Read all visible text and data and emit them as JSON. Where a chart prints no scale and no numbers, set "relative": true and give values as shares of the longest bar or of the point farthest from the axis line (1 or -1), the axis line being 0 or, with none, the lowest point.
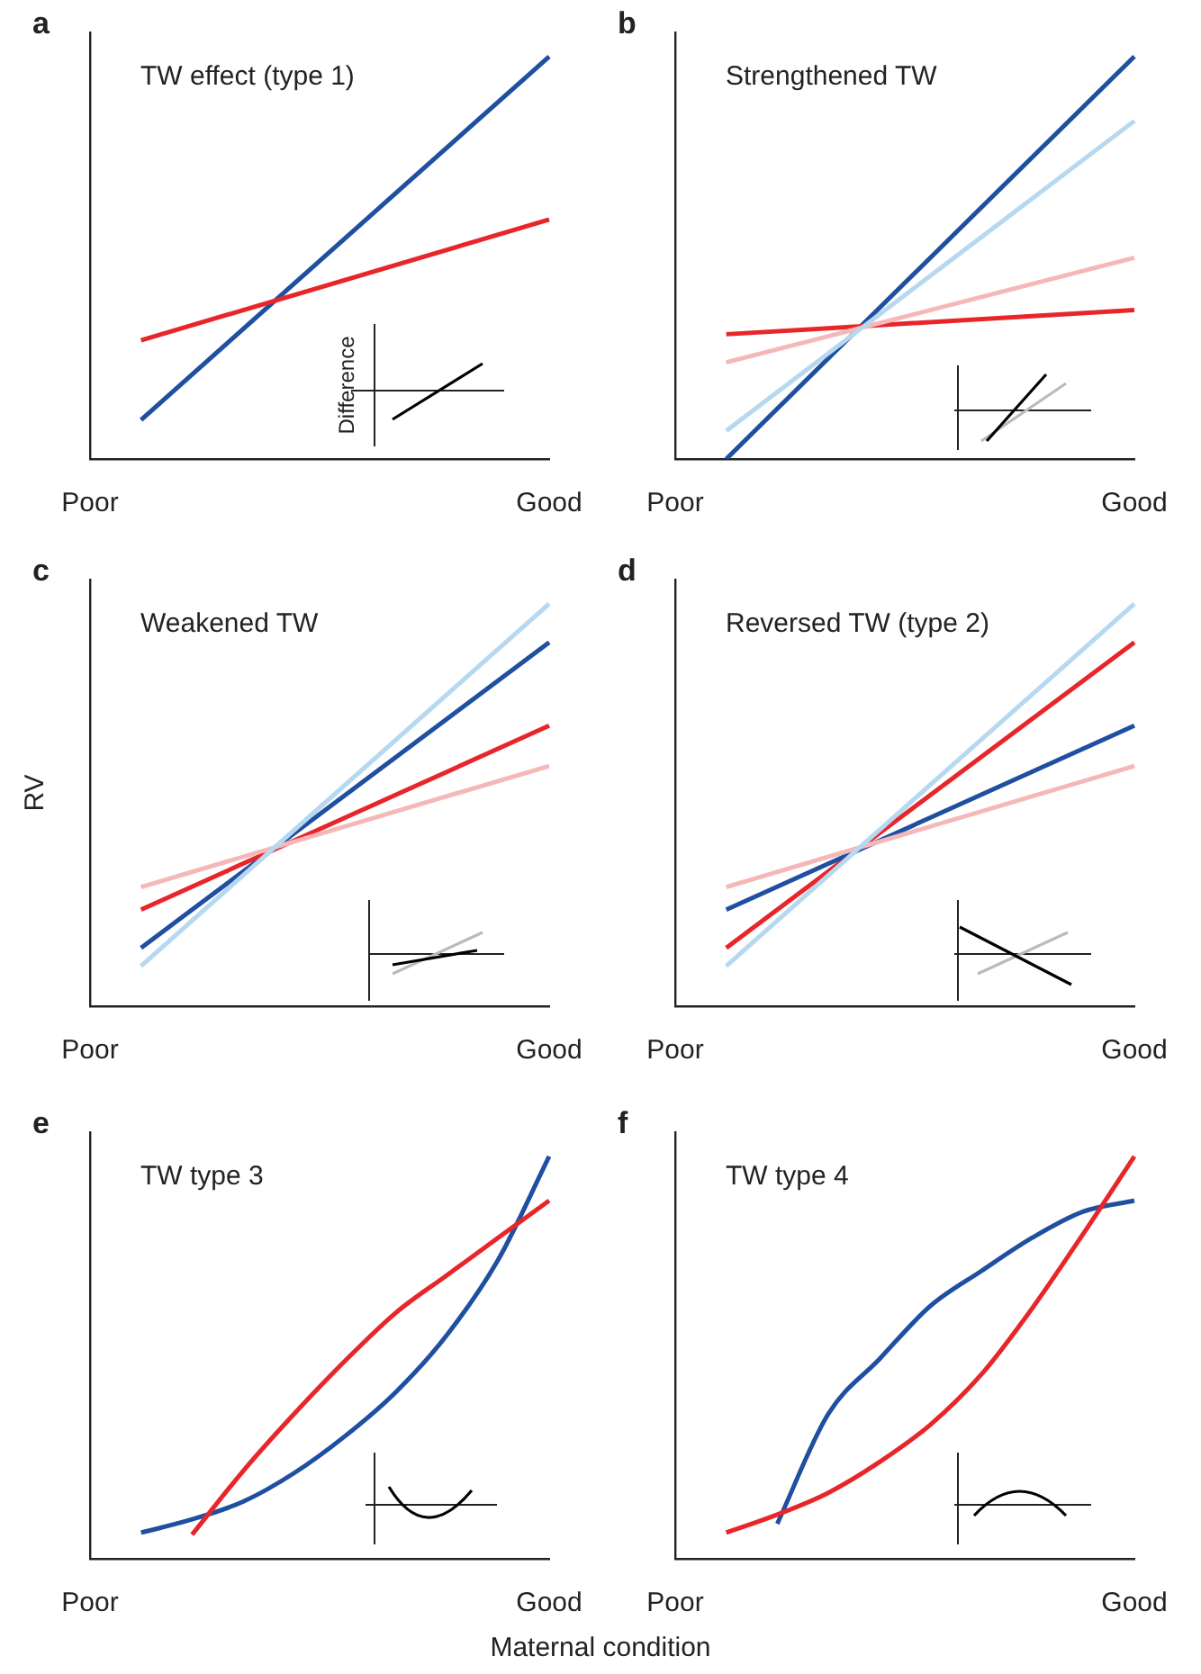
{
  "chart_data": [
    {
      "type": "line",
      "title": "TW effect (type 1)",
      "annotations": [
        "a",
        "Difference"
      ],
      "relative": true,
      "marker": "none",
      "categories": [
        "Poor",
        null,
        null,
        null,
        null,
        null,
        null,
        null,
        null,
        "Good"
      ],
      "series": [
        {
          "color": "#e8262a",
          "values": [
            null,
            0.295,
            null,
            null,
            null,
            null,
            null,
            null,
            null,
            0.595
          ]
        },
        {
          "color": "#1f4fa0",
          "values": [
            null,
            0.097,
            null,
            null,
            null,
            null,
            null,
            null,
            null,
            1
          ]
        }
      ]
    },
    {
      "type": "line",
      "title": "Strengthened TW",
      "annotations": [
        "b"
      ],
      "relative": true,
      "marker": "none",
      "categories": [
        "Poor",
        null,
        null,
        null,
        null,
        null,
        null,
        null,
        null,
        "Good"
      ],
      "series": [
        {
          "color": "#b6d8f0",
          "values": [
            null,
            0.07,
            null,
            null,
            null,
            null,
            null,
            null,
            null,
            0.84
          ]
        },
        {
          "color": "#f5b8b8",
          "values": [
            null,
            0.24,
            null,
            null,
            null,
            null,
            null,
            null,
            null,
            0.5
          ]
        },
        {
          "color": "#e8262a",
          "values": [
            null,
            0.31,
            null,
            null,
            null,
            null,
            null,
            null,
            null,
            0.37
          ]
        },
        {
          "color": "#1f4fa0",
          "values": [
            null,
            0,
            null,
            null,
            null,
            null,
            null,
            null,
            null,
            1
          ]
        }
      ]
    },
    {
      "type": "line",
      "title": "Weakened TW",
      "ylabel": "RV",
      "annotations": [
        "c"
      ],
      "relative": true,
      "marker": "none",
      "categories": [
        "Poor",
        null,
        null,
        null,
        null,
        null,
        null,
        null,
        null,
        "Good"
      ],
      "series": [
        {
          "color": "#b6d8f0",
          "values": [
            null,
            0.1,
            null,
            null,
            null,
            null,
            null,
            null,
            null,
            1
          ]
        },
        {
          "color": "#f5b8b8",
          "values": [
            null,
            0.296,
            null,
            null,
            null,
            null,
            null,
            null,
            null,
            0.597
          ]
        },
        {
          "color": "#e8262a",
          "values": [
            null,
            0.24,
            null,
            null,
            null,
            null,
            null,
            null,
            null,
            0.697
          ]
        },
        {
          "color": "#1f4fa0",
          "values": [
            null,
            0.145,
            null,
            null,
            null,
            null,
            null,
            null,
            null,
            0.904
          ]
        }
      ]
    },
    {
      "type": "line",
      "title": "Reversed TW (type 2)",
      "annotations": [
        "d"
      ],
      "relative": true,
      "marker": "none",
      "categories": [
        "Poor",
        null,
        null,
        null,
        null,
        null,
        null,
        null,
        null,
        "Good"
      ],
      "series": [
        {
          "color": "#b6d8f0",
          "values": [
            null,
            0.1,
            null,
            null,
            null,
            null,
            null,
            null,
            null,
            1
          ]
        },
        {
          "color": "#f5b8b8",
          "values": [
            null,
            0.296,
            null,
            null,
            null,
            null,
            null,
            null,
            null,
            0.597
          ]
        },
        {
          "color": "#1f4fa0",
          "values": [
            null,
            0.24,
            null,
            null,
            null,
            null,
            null,
            null,
            null,
            0.697
          ]
        },
        {
          "color": "#e8262a",
          "values": [
            null,
            0.145,
            null,
            null,
            null,
            null,
            null,
            null,
            null,
            0.904
          ]
        }
      ]
    },
    {
      "type": "line",
      "title": "TW type 3",
      "xlabel": "Maternal condition",
      "annotations": [
        "e"
      ],
      "relative": true,
      "marker": "none",
      "categories": [
        "Poor",
        null,
        null,
        null,
        null,
        null,
        null,
        null,
        null,
        "Good"
      ],
      "series": [
        {
          "color": "#e8262a",
          "values": [
            null,
            null,
            0.06,
            0.218,
            0.36,
            0.492,
            0.612,
            0.705,
            0.798,
            0.89
          ]
        },
        {
          "color": "#1f4fa0",
          "values": [
            null,
            0.065,
            0.098,
            0.142,
            0.213,
            0.305,
            0.415,
            0.557,
            0.743,
            1
          ]
        }
      ]
    },
    {
      "type": "line",
      "title": "TW type 4",
      "annotations": [
        "f"
      ],
      "relative": true,
      "marker": "none",
      "categories": [
        "Poor",
        null,
        null,
        null,
        null,
        null,
        null,
        null,
        null,
        "Good"
      ],
      "series": [
        {
          "color": "#e8262a",
          "values": [
            null,
            0.065,
            0.11,
            0.164,
            0.24,
            0.333,
            0.458,
            0.623,
            0.808,
            1
          ]
        },
        {
          "color": "#1f4fa0",
          "values": [
            null,
            null,
            0.087,
            0.36,
            0.496,
            0.628,
            0.715,
            0.798,
            0.863,
            0.89
          ]
        }
      ]
    }
  ]
}
